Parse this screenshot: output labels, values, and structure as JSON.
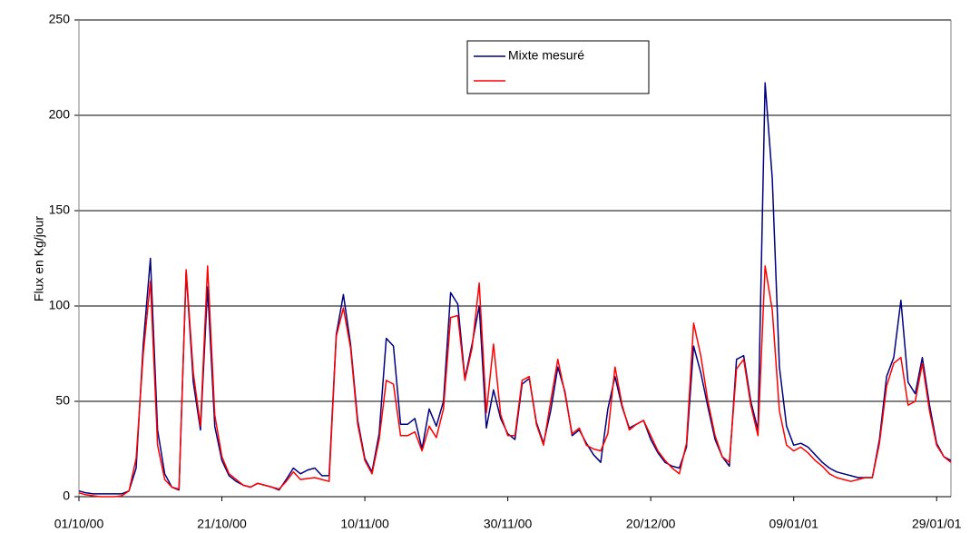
{
  "chart_data": {
    "type": "line",
    "y_label": "Flux en Kg/jour",
    "x": [
      "2000-10-01",
      "2000-10-02",
      "2000-10-03",
      "2000-10-04",
      "2000-10-05",
      "2000-10-06",
      "2000-10-07",
      "2000-10-08",
      "2000-10-09",
      "2000-10-10",
      "2000-10-11",
      "2000-10-12",
      "2000-10-13",
      "2000-10-14",
      "2000-10-15",
      "2000-10-16",
      "2000-10-17",
      "2000-10-18",
      "2000-10-19",
      "2000-10-20",
      "2000-10-21",
      "2000-10-22",
      "2000-10-23",
      "2000-10-24",
      "2000-10-25",
      "2000-10-26",
      "2000-10-27",
      "2000-10-28",
      "2000-10-29",
      "2000-10-30",
      "2000-10-31",
      "2000-11-01",
      "2000-11-02",
      "2000-11-03",
      "2000-11-04",
      "2000-11-05",
      "2000-11-06",
      "2000-11-07",
      "2000-11-08",
      "2000-11-09",
      "2000-11-10",
      "2000-11-11",
      "2000-11-12",
      "2000-11-13",
      "2000-11-14",
      "2000-11-15",
      "2000-11-16",
      "2000-11-17",
      "2000-11-18",
      "2000-11-19",
      "2000-11-20",
      "2000-11-21",
      "2000-11-22",
      "2000-11-23",
      "2000-11-24",
      "2000-11-25",
      "2000-11-26",
      "2000-11-27",
      "2000-11-28",
      "2000-11-29",
      "2000-11-30",
      "2000-12-01",
      "2000-12-02",
      "2000-12-03",
      "2000-12-04",
      "2000-12-05",
      "2000-12-06",
      "2000-12-07",
      "2000-12-08",
      "2000-12-09",
      "2000-12-10",
      "2000-12-11",
      "2000-12-12",
      "2000-12-13",
      "2000-12-14",
      "2000-12-15",
      "2000-12-16",
      "2000-12-17",
      "2000-12-18",
      "2000-12-19",
      "2000-12-20",
      "2000-12-21",
      "2000-12-22",
      "2000-12-23",
      "2000-12-24",
      "2000-12-25",
      "2000-12-26",
      "2000-12-27",
      "2000-12-28",
      "2000-12-29",
      "2000-12-30",
      "2000-12-31",
      "2001-01-01",
      "2001-01-02",
      "2001-01-03",
      "2001-01-04",
      "2001-01-05",
      "2001-01-06",
      "2001-01-07",
      "2001-01-08",
      "2001-01-09",
      "2001-01-10",
      "2001-01-11",
      "2001-01-12",
      "2001-01-13",
      "2001-01-14",
      "2001-01-15",
      "2001-01-16",
      "2001-01-17",
      "2001-01-18",
      "2001-01-19",
      "2001-01-20",
      "2001-01-21",
      "2001-01-22",
      "2001-01-23",
      "2001-01-24",
      "2001-01-25",
      "2001-01-26",
      "2001-01-27",
      "2001-01-28",
      "2001-01-29",
      "2001-01-30",
      "2001-01-31"
    ],
    "series": [
      {
        "name": "Mixte mesuré",
        "color": "#000080",
        "values": [
          3,
          2,
          1.5,
          1.5,
          1.5,
          1.5,
          1.5,
          3,
          15,
          80,
          125,
          35,
          12,
          5,
          3.5,
          118,
          60,
          35,
          110,
          37,
          19,
          11,
          8,
          6,
          5,
          7,
          6,
          5,
          3.5,
          9,
          15,
          12,
          14,
          15,
          11,
          11,
          85,
          106,
          80,
          40,
          20,
          13,
          33,
          83,
          79,
          38,
          38,
          41,
          25,
          46,
          37,
          50,
          107,
          101,
          62,
          80,
          100,
          36,
          56,
          41,
          33,
          30,
          59,
          62,
          39,
          28,
          45,
          68,
          55,
          32,
          35,
          28,
          22,
          18,
          46,
          63,
          47,
          36,
          38,
          40,
          30,
          23,
          18,
          16,
          15,
          26,
          79,
          65,
          47,
          30,
          21,
          16,
          72,
          74,
          50,
          35,
          217,
          167,
          68,
          37,
          27,
          28,
          26,
          22,
          18,
          15,
          13,
          12,
          11,
          10,
          10,
          10,
          30,
          63,
          73,
          103,
          60,
          54,
          73,
          48,
          28,
          21,
          19
        ]
      },
      {
        "color": "#ff0000",
        "values": [
          2,
          1,
          0.5,
          0,
          0,
          0,
          0.5,
          3,
          20,
          75,
          113,
          27,
          9,
          5,
          4,
          119,
          65,
          37,
          121,
          43,
          21,
          12,
          9,
          6,
          5,
          7,
          6,
          5,
          4,
          8,
          13,
          9,
          9.5,
          10,
          9,
          8,
          84,
          99,
          78,
          38,
          19,
          12,
          30,
          61,
          59,
          32,
          32,
          34,
          24,
          37,
          31,
          46,
          94,
          95,
          61,
          78,
          112,
          44,
          80,
          43,
          32,
          32,
          61,
          63,
          38,
          27,
          50,
          72,
          54,
          33,
          36,
          27,
          25,
          24,
          33,
          68,
          48,
          35,
          38,
          40,
          32,
          24,
          19,
          15,
          12,
          28,
          91,
          74,
          50,
          32,
          21,
          18,
          67,
          72,
          48,
          32,
          121,
          98,
          45,
          27,
          24,
          26,
          23,
          19,
          16,
          12,
          10,
          9,
          8,
          9,
          10,
          10,
          28,
          58,
          70,
          73,
          48,
          50,
          70,
          45,
          27,
          21,
          18
        ]
      }
    ],
    "xlim": [
      "2000-10-01",
      "2001-01-31"
    ],
    "xticks": [
      {
        "value": "2000-10-01",
        "label": "01/10/00"
      },
      {
        "value": "2000-10-21",
        "label": "21/10/00"
      },
      {
        "value": "2000-11-10",
        "label": "10/11/00"
      },
      {
        "value": "2000-11-30",
        "label": "30/11/00"
      },
      {
        "value": "2000-12-20",
        "label": "20/12/00"
      },
      {
        "value": "2001-01-09",
        "label": "09/01/01"
      },
      {
        "value": "2001-01-29",
        "label": "29/01/01"
      }
    ],
    "ylim": [
      0,
      250
    ],
    "yticks": [
      0,
      50,
      100,
      150,
      200,
      250
    ],
    "grid": true
  }
}
